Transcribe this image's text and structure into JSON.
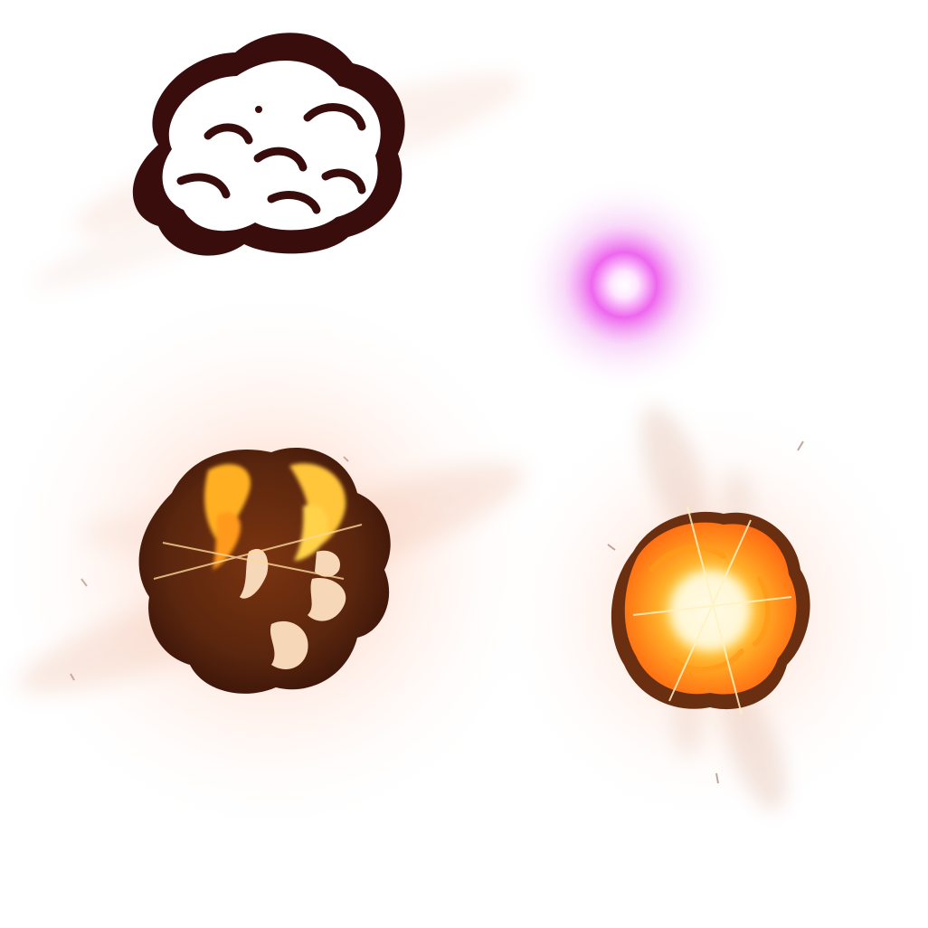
{
  "sprites": [
    {
      "name": "smoke-puff-icon",
      "type": "dark smoke cloud with white fill"
    },
    {
      "name": "magenta-orb-icon",
      "type": "pink glowing energy orb"
    },
    {
      "name": "fire-explosion-dark-icon",
      "type": "dark brown explosion cloud with orange flames"
    },
    {
      "name": "fire-explosion-bright-icon",
      "type": "bright orange fireball explosion"
    }
  ],
  "colors": {
    "background": "#ffffff",
    "smoke_outline": "#3a0d0d",
    "orb_core": "#ffe6ff",
    "orb_glow": "#e63de6",
    "fire_outer": "#ff6a1a",
    "fire_inner": "#ffd23a",
    "fire_core": "#fff6c8",
    "dark_cloud": "#5a260e",
    "ember_glow": "#ff8a5a"
  }
}
